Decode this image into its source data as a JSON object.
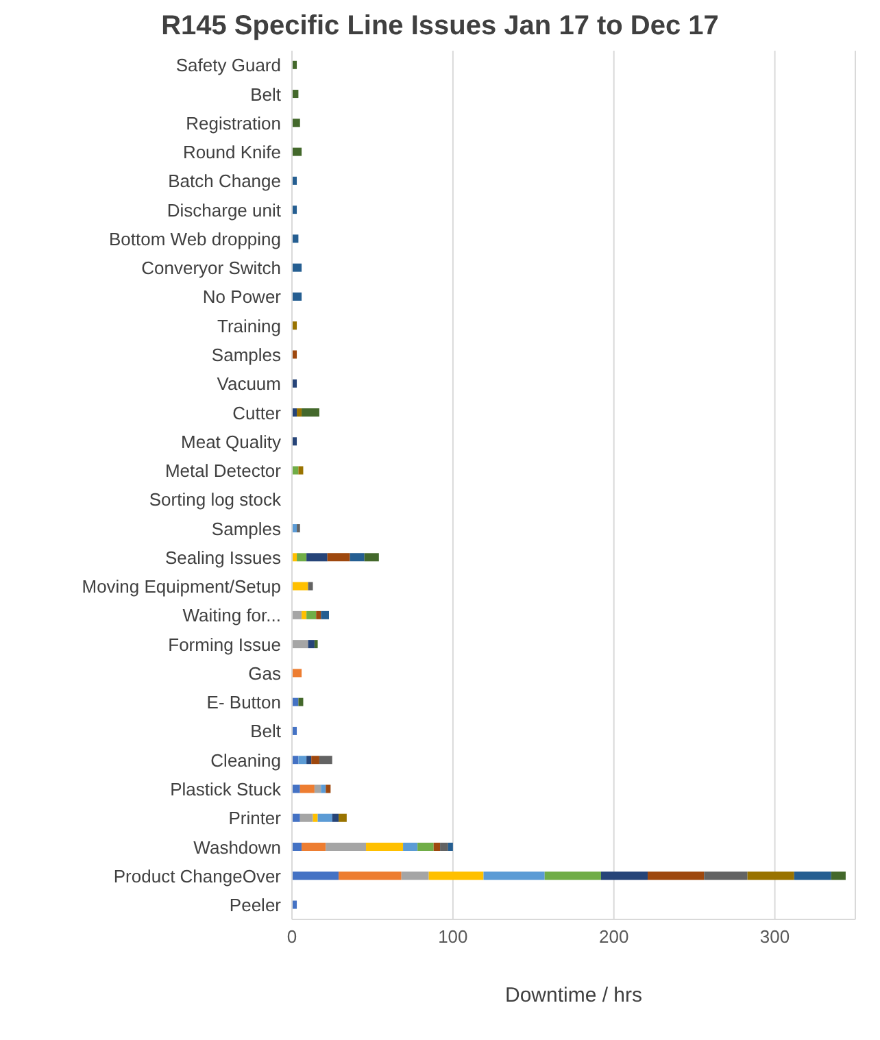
{
  "chart_data": {
    "type": "bar",
    "orientation": "horizontal",
    "stacked": true,
    "title": "R145 Specific Line Issues Jan 17 to Dec 17",
    "xlabel": "Downtime / hrs",
    "categories": [
      "Safety Guard",
      "Belt",
      "Registration",
      "Round Knife",
      "Batch Change",
      "Discharge unit",
      "Bottom Web dropping",
      "Converyor Switch",
      "No Power",
      "Training",
      "Samples",
      "Vacuum",
      "Cutter",
      "Meat Quality",
      "Metal Detector",
      "Sorting log stock",
      "Samples",
      "Sealing Issues",
      "Moving Equipment/Setup",
      "Waiting for...",
      "Forming Issue",
      "Gas",
      "E- Button",
      "Belt",
      "Cleaning",
      "Plastick Stuck",
      "Printer",
      "Washdown",
      "Product ChangeOver",
      "Peeler"
    ],
    "series": [
      {
        "color": "#4472c4",
        "values": [
          null,
          null,
          null,
          null,
          null,
          null,
          null,
          null,
          null,
          null,
          null,
          null,
          null,
          null,
          null,
          null,
          null,
          null,
          null,
          null,
          null,
          null,
          4,
          3,
          4,
          5,
          5,
          6,
          29,
          3
        ]
      },
      {
        "color": "#ed7d31",
        "values": [
          null,
          null,
          null,
          null,
          null,
          null,
          null,
          null,
          null,
          null,
          null,
          null,
          null,
          null,
          null,
          null,
          null,
          null,
          null,
          null,
          null,
          6,
          null,
          null,
          null,
          9,
          null,
          15,
          39,
          null
        ]
      },
      {
        "color": "#a5a5a5",
        "values": [
          null,
          null,
          null,
          null,
          null,
          null,
          null,
          null,
          null,
          null,
          null,
          null,
          null,
          null,
          null,
          null,
          null,
          null,
          null,
          6,
          10,
          null,
          null,
          null,
          null,
          4,
          8,
          25,
          17,
          null
        ]
      },
      {
        "color": "#ffc000",
        "values": [
          null,
          null,
          null,
          null,
          null,
          null,
          null,
          null,
          null,
          null,
          null,
          null,
          null,
          null,
          null,
          null,
          null,
          3,
          10,
          3,
          null,
          null,
          null,
          null,
          null,
          null,
          3,
          23,
          34,
          null
        ]
      },
      {
        "color": "#5b9bd5",
        "values": [
          null,
          null,
          null,
          null,
          null,
          null,
          null,
          null,
          null,
          null,
          null,
          null,
          null,
          null,
          null,
          null,
          3,
          null,
          null,
          null,
          null,
          null,
          null,
          null,
          5,
          3,
          9,
          9,
          38,
          null
        ]
      },
      {
        "color": "#70ad47",
        "values": [
          null,
          null,
          null,
          null,
          null,
          null,
          null,
          null,
          null,
          null,
          null,
          null,
          null,
          null,
          4,
          null,
          null,
          6,
          null,
          6,
          null,
          null,
          null,
          null,
          null,
          null,
          null,
          10,
          35,
          null
        ]
      },
      {
        "color": "#264478",
        "values": [
          null,
          null,
          null,
          null,
          null,
          null,
          null,
          null,
          null,
          null,
          null,
          3,
          3,
          3,
          null,
          null,
          null,
          13,
          null,
          null,
          4,
          null,
          null,
          null,
          3,
          null,
          4,
          null,
          29,
          null
        ]
      },
      {
        "color": "#9e480e",
        "values": [
          null,
          null,
          null,
          null,
          null,
          null,
          null,
          null,
          null,
          null,
          3,
          null,
          null,
          null,
          null,
          null,
          null,
          14,
          null,
          3,
          null,
          null,
          null,
          null,
          5,
          3,
          null,
          4,
          35,
          null
        ]
      },
      {
        "color": "#636363",
        "values": [
          null,
          null,
          null,
          null,
          null,
          null,
          null,
          null,
          null,
          null,
          null,
          null,
          null,
          null,
          null,
          null,
          2,
          null,
          3,
          null,
          null,
          null,
          null,
          null,
          8,
          null,
          null,
          5,
          27,
          null
        ]
      },
      {
        "color": "#997300",
        "values": [
          null,
          null,
          null,
          null,
          null,
          null,
          null,
          null,
          null,
          3,
          null,
          null,
          3,
          null,
          3,
          null,
          null,
          null,
          null,
          null,
          null,
          null,
          null,
          null,
          null,
          null,
          5,
          null,
          29,
          null
        ]
      },
      {
        "color": "#255e91",
        "values": [
          null,
          null,
          null,
          null,
          3,
          3,
          4,
          6,
          6,
          null,
          null,
          null,
          null,
          null,
          null,
          null,
          null,
          9,
          null,
          5,
          null,
          null,
          null,
          null,
          null,
          null,
          null,
          3,
          23,
          null
        ]
      },
      {
        "color": "#43682b",
        "values": [
          3,
          4,
          5,
          6,
          null,
          null,
          null,
          null,
          null,
          null,
          null,
          null,
          11,
          null,
          null,
          null,
          null,
          9,
          null,
          null,
          2,
          null,
          3,
          null,
          null,
          null,
          null,
          null,
          9,
          null
        ]
      }
    ],
    "xlim": [
      0,
      350
    ],
    "xticks": [
      0,
      100,
      200,
      300
    ],
    "grid": "x",
    "legend": false
  }
}
